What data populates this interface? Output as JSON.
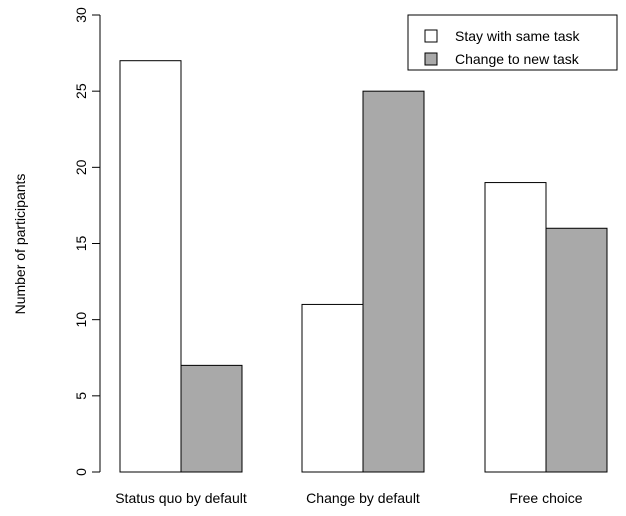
{
  "chart_data": {
    "type": "bar",
    "categories": [
      "Status quo by default",
      "Change by default",
      "Free choice"
    ],
    "series": [
      {
        "name": "Stay with same task",
        "values": [
          27,
          11,
          19
        ],
        "color": "#ffffff"
      },
      {
        "name": "Change to new task",
        "values": [
          7,
          25,
          16
        ],
        "color": "#a9a9a9"
      }
    ],
    "title": "",
    "xlabel": "",
    "ylabel": "Number of participants",
    "ylim": [
      0,
      30
    ],
    "yticks": [
      0,
      5,
      10,
      15,
      20,
      25,
      30
    ],
    "ytick_labels": [
      "0",
      "5",
      "10",
      "15",
      "20",
      "25",
      "30"
    ],
    "grid": false,
    "legend_position": "top-right"
  }
}
